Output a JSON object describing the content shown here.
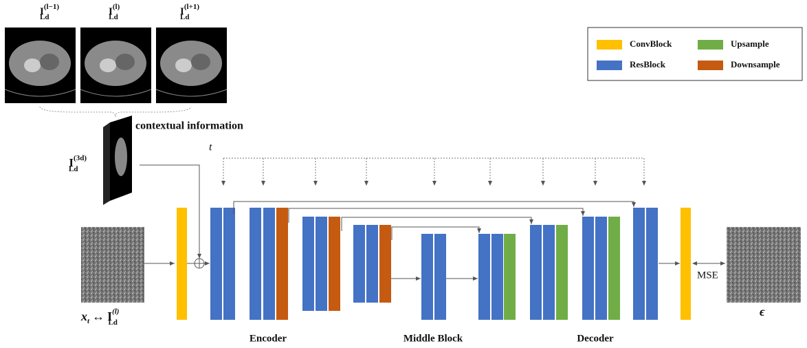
{
  "slices": [
    {
      "base": "I",
      "sub": "Ld",
      "sup": "(l−1)"
    },
    {
      "base": "I",
      "sub": "Ld",
      "sup": "(l)"
    },
    {
      "base": "I",
      "sub": "Ld",
      "sup": "(l+1)"
    }
  ],
  "context": {
    "caption": "contextual information",
    "label": {
      "base": "I",
      "sub": "Ld",
      "sup": "(3d)"
    }
  },
  "time": "t",
  "input": {
    "var": "x",
    "var_sub": "t",
    "arrow": "↔",
    "base": "I",
    "sub": "Ld",
    "sup": "(l)"
  },
  "sections": [
    "Encoder",
    "Middle Block",
    "Decoder"
  ],
  "loss": "MSE",
  "output": "ϵ",
  "legend": [
    {
      "label": "ConvBlock",
      "color": "#FFC000"
    },
    {
      "label": "Upsample",
      "color": "#70AD47"
    },
    {
      "label": "ResBlock",
      "color": "#4472C4"
    },
    {
      "label": "Downsample",
      "color": "#C55A11"
    }
  ]
}
